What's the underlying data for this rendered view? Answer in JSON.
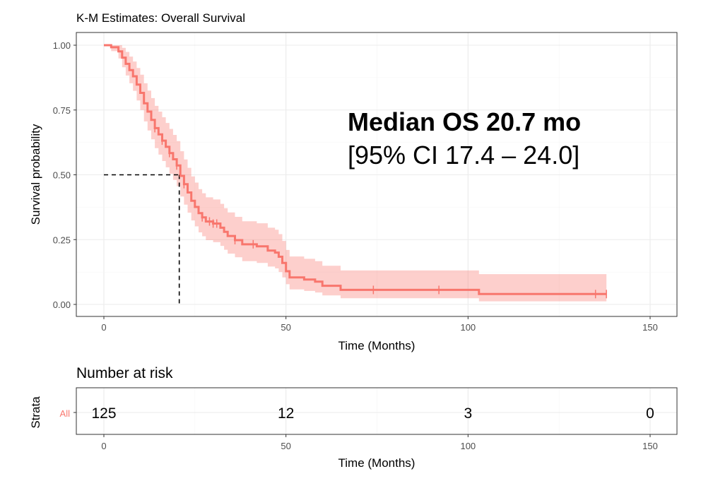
{
  "chart_data": [
    {
      "type": "line",
      "title": "K-M Estimates: Overall Survival",
      "xlabel": "Time (Months)",
      "ylabel": "Survival probability",
      "xlim": [
        0,
        150
      ],
      "ylim": [
        0,
        1
      ],
      "x_ticks": [
        0,
        50,
        100,
        150
      ],
      "y_ticks": [
        "0.00",
        "0.25",
        "0.50",
        "0.75",
        "1.00"
      ],
      "grid": true,
      "series": [
        {
          "color": "#f8766d",
          "steps": [
            [
              0,
              1.0
            ],
            [
              2,
              0.992
            ],
            [
              4,
              0.976
            ],
            [
              5,
              0.952
            ],
            [
              6,
              0.928
            ],
            [
              7,
              0.904
            ],
            [
              8,
              0.88
            ],
            [
              9,
              0.848
            ],
            [
              10,
              0.816
            ],
            [
              11,
              0.776
            ],
            [
              12,
              0.744
            ],
            [
              13,
              0.712
            ],
            [
              14,
              0.68
            ],
            [
              15,
              0.656
            ],
            [
              16,
              0.632
            ],
            [
              17,
              0.608
            ],
            [
              18,
              0.584
            ],
            [
              19,
              0.56
            ],
            [
              20,
              0.536
            ],
            [
              21,
              0.496
            ],
            [
              22,
              0.464
            ],
            [
              23,
              0.432
            ],
            [
              24,
              0.4
            ],
            [
              25,
              0.376
            ],
            [
              26,
              0.352
            ],
            [
              27,
              0.336
            ],
            [
              28,
              0.32
            ],
            [
              30,
              0.312
            ],
            [
              32,
              0.296
            ],
            [
              33,
              0.28
            ],
            [
              34,
              0.264
            ],
            [
              36,
              0.248
            ],
            [
              38,
              0.232
            ],
            [
              42,
              0.224
            ],
            [
              45,
              0.208
            ],
            [
              47,
              0.2
            ],
            [
              48,
              0.184
            ],
            [
              49,
              0.16
            ],
            [
              50,
              0.128
            ],
            [
              51,
              0.104
            ],
            [
              55,
              0.096
            ],
            [
              58,
              0.088
            ],
            [
              60,
              0.072
            ],
            [
              65,
              0.056
            ],
            [
              103,
              0.04
            ],
            [
              138,
              0.04
            ]
          ],
          "ci_lower": [
            [
              0,
              1.0
            ],
            [
              2,
              0.977
            ],
            [
              4,
              0.949
            ],
            [
              5,
              0.915
            ],
            [
              6,
              0.883
            ],
            [
              7,
              0.853
            ],
            [
              8,
              0.824
            ],
            [
              9,
              0.787
            ],
            [
              10,
              0.75
            ],
            [
              11,
              0.706
            ],
            [
              12,
              0.671
            ],
            [
              13,
              0.637
            ],
            [
              14,
              0.603
            ],
            [
              15,
              0.578
            ],
            [
              16,
              0.553
            ],
            [
              17,
              0.529
            ],
            [
              18,
              0.504
            ],
            [
              19,
              0.48
            ],
            [
              20,
              0.456
            ],
            [
              21,
              0.416
            ],
            [
              22,
              0.385
            ],
            [
              23,
              0.354
            ],
            [
              24,
              0.324
            ],
            [
              25,
              0.301
            ],
            [
              26,
              0.278
            ],
            [
              27,
              0.263
            ],
            [
              28,
              0.248
            ],
            [
              30,
              0.24
            ],
            [
              32,
              0.226
            ],
            [
              33,
              0.211
            ],
            [
              34,
              0.196
            ],
            [
              36,
              0.182
            ],
            [
              38,
              0.167
            ],
            [
              42,
              0.16
            ],
            [
              45,
              0.146
            ],
            [
              47,
              0.139
            ],
            [
              48,
              0.125
            ],
            [
              49,
              0.104
            ],
            [
              50,
              0.078
            ],
            [
              51,
              0.058
            ],
            [
              55,
              0.052
            ],
            [
              58,
              0.046
            ],
            [
              60,
              0.035
            ],
            [
              65,
              0.024
            ],
            [
              103,
              0.012
            ],
            [
              138,
              0.012
            ]
          ],
          "ci_upper": [
            [
              0,
              1.0
            ],
            [
              2,
              1.0
            ],
            [
              4,
              1.0
            ],
            [
              5,
              0.99
            ],
            [
              6,
              0.974
            ],
            [
              7,
              0.956
            ],
            [
              8,
              0.937
            ],
            [
              9,
              0.912
            ],
            [
              10,
              0.886
            ],
            [
              11,
              0.853
            ],
            [
              12,
              0.825
            ],
            [
              13,
              0.796
            ],
            [
              14,
              0.766
            ],
            [
              15,
              0.744
            ],
            [
              16,
              0.722
            ],
            [
              17,
              0.7
            ],
            [
              18,
              0.677
            ],
            [
              19,
              0.654
            ],
            [
              20,
              0.63
            ],
            [
              21,
              0.591
            ],
            [
              22,
              0.559
            ],
            [
              23,
              0.527
            ],
            [
              24,
              0.494
            ],
            [
              25,
              0.47
            ],
            [
              26,
              0.445
            ],
            [
              27,
              0.429
            ],
            [
              28,
              0.413
            ],
            [
              30,
              0.405
            ],
            [
              32,
              0.388
            ],
            [
              33,
              0.371
            ],
            [
              34,
              0.355
            ],
            [
              36,
              0.338
            ],
            [
              38,
              0.321
            ],
            [
              42,
              0.313
            ],
            [
              45,
              0.296
            ],
            [
              47,
              0.288
            ],
            [
              48,
              0.271
            ],
            [
              49,
              0.245
            ],
            [
              50,
              0.21
            ],
            [
              51,
              0.185
            ],
            [
              55,
              0.176
            ],
            [
              58,
              0.167
            ],
            [
              60,
              0.149
            ],
            [
              65,
              0.131
            ],
            [
              103,
              0.117
            ],
            [
              138,
              0.117
            ]
          ],
          "censored": [
            [
              14,
              0.68
            ],
            [
              16,
              0.632
            ],
            [
              18,
              0.584
            ],
            [
              20,
              0.536
            ],
            [
              22,
              0.464
            ],
            [
              27,
              0.336
            ],
            [
              29,
              0.32
            ],
            [
              30,
              0.312
            ],
            [
              31,
              0.312
            ],
            [
              36,
              0.248
            ],
            [
              41,
              0.232
            ],
            [
              74,
              0.056
            ],
            [
              92,
              0.056
            ],
            [
              135,
              0.04
            ],
            [
              138,
              0.04
            ]
          ]
        }
      ],
      "median": {
        "x": 20.7,
        "y": 0.5
      },
      "annotations": [
        "Median OS 20.7 mo",
        "[95% CI 17.4 – 24.0]"
      ]
    },
    {
      "type": "table",
      "title": "Number at risk",
      "xlabel": "Time (Months)",
      "ylabel": "Strata",
      "xlim": [
        0,
        150
      ],
      "x_ticks": [
        0,
        50,
        100,
        150
      ],
      "strata": "All",
      "times": [
        0,
        50,
        100,
        150
      ],
      "at_risk": [
        125,
        12,
        3,
        0
      ]
    }
  ]
}
